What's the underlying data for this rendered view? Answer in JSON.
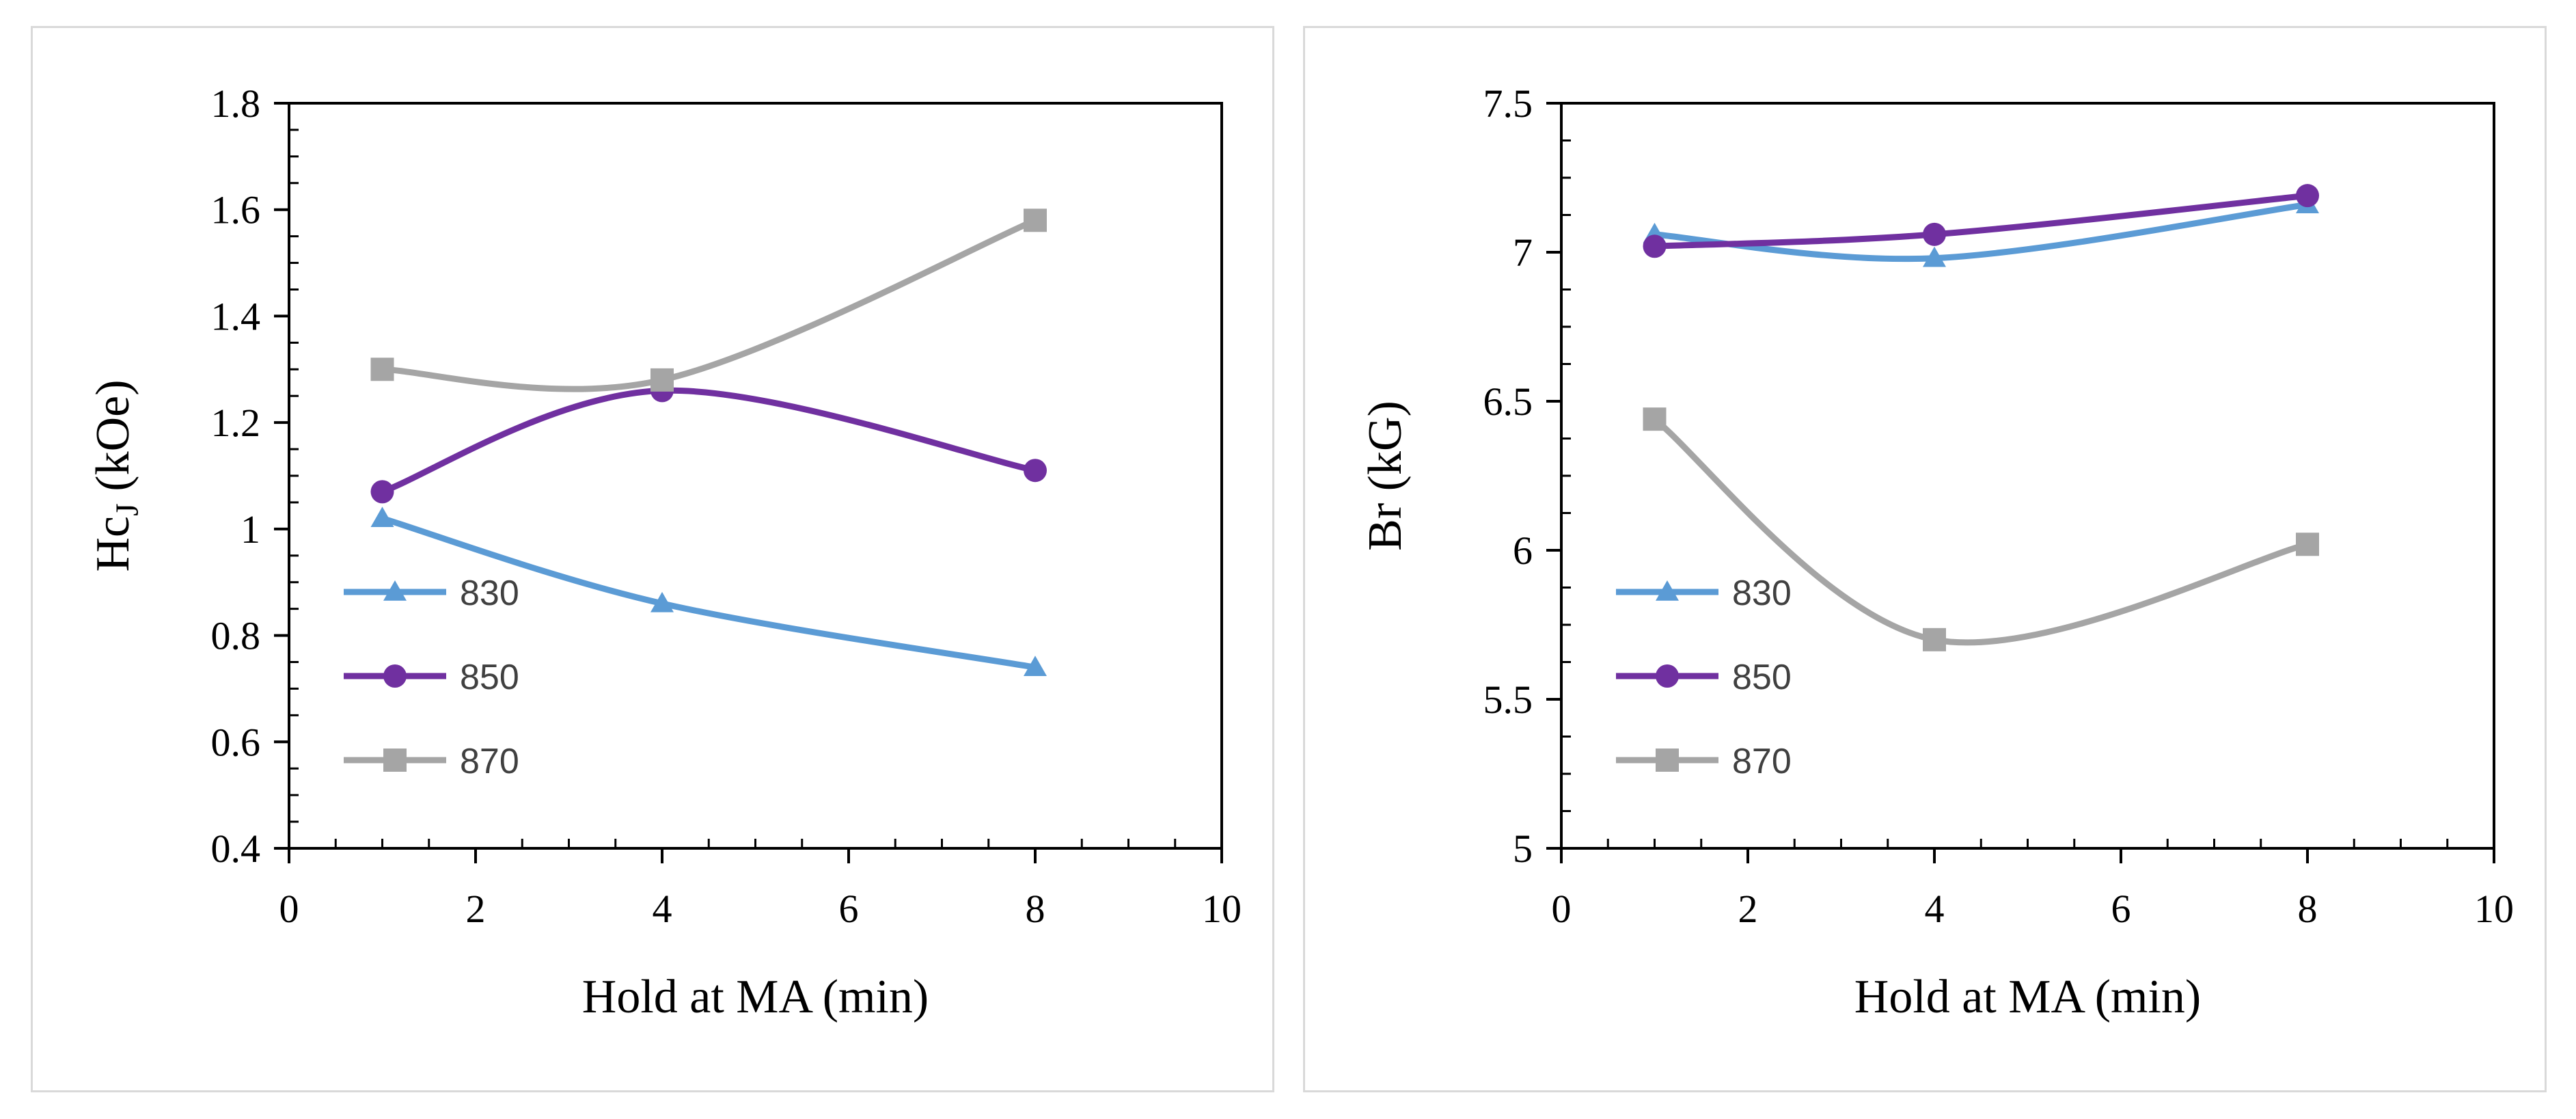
{
  "chart_data": [
    {
      "type": "line",
      "smooth": true,
      "xlabel": "Hold at MA (min)",
      "ylabel_main": "Hc",
      "ylabel_sub": "J",
      "ylabel_unit": " (kOe)",
      "xlim": [
        0,
        10
      ],
      "ylim": [
        0.4,
        1.8
      ],
      "xticks": [
        0,
        2,
        4,
        6,
        8,
        10
      ],
      "yticks": [
        0.4,
        0.6,
        0.8,
        1,
        1.2,
        1.4,
        1.6,
        1.8
      ],
      "grid": false,
      "legend_position": "left",
      "series": [
        {
          "name": "830",
          "color": "#5b9bd5",
          "marker": "triangle",
          "x": [
            1,
            4,
            8
          ],
          "y": [
            1.02,
            0.86,
            0.74
          ]
        },
        {
          "name": "850",
          "color": "#7030a0",
          "marker": "circle",
          "x": [
            1,
            4,
            8
          ],
          "y": [
            1.07,
            1.26,
            1.11
          ]
        },
        {
          "name": "870",
          "color": "#a5a5a5",
          "marker": "square",
          "x": [
            1,
            4,
            8
          ],
          "y": [
            1.3,
            1.28,
            1.58
          ]
        }
      ]
    },
    {
      "type": "line",
      "smooth": true,
      "xlabel": "Hold at MA (min)",
      "ylabel_main": "Br (kG)",
      "ylabel_sub": "",
      "ylabel_unit": "",
      "xlim": [
        0,
        10
      ],
      "ylim": [
        5,
        7.5
      ],
      "xticks": [
        0,
        2,
        4,
        6,
        8,
        10
      ],
      "yticks": [
        5,
        5.5,
        6,
        6.5,
        7,
        7.5
      ],
      "grid": false,
      "legend_position": "left",
      "series": [
        {
          "name": "830",
          "color": "#5b9bd5",
          "marker": "triangle",
          "x": [
            1,
            4,
            8
          ],
          "y": [
            7.06,
            6.98,
            7.16
          ]
        },
        {
          "name": "850",
          "color": "#7030a0",
          "marker": "circle",
          "x": [
            1,
            4,
            8
          ],
          "y": [
            7.02,
            7.06,
            7.19
          ]
        },
        {
          "name": "870",
          "color": "#a5a5a5",
          "marker": "square",
          "x": [
            1,
            4,
            8
          ],
          "y": [
            6.44,
            5.7,
            6.02
          ]
        }
      ]
    }
  ]
}
